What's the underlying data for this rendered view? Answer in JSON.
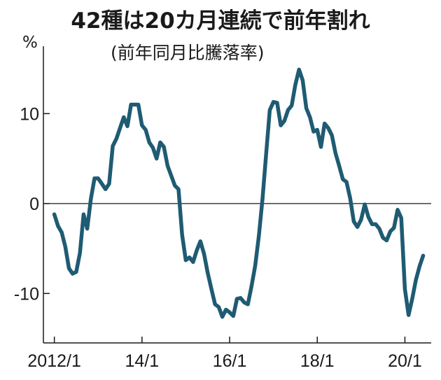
{
  "chart_data": {
    "type": "line",
    "title": "42種は20カ月連続で前年割れ",
    "subtitle": "(前年同月比騰落率)",
    "ylabel": "%",
    "xlabel": "",
    "ylim": [
      -15.5,
      17.5
    ],
    "xlim": [
      2011.75,
      2020.6
    ],
    "y_ticks": [
      {
        "value": 10,
        "label": "10"
      },
      {
        "value": 0,
        "label": "0"
      },
      {
        "value": -10,
        "label": "-10"
      }
    ],
    "x_ticks": [
      {
        "value": 2012.0,
        "label": "2012/1"
      },
      {
        "value": 2014.0,
        "label": "14/1"
      },
      {
        "value": 2016.0,
        "label": "16/1"
      },
      {
        "value": 2018.0,
        "label": "18/1"
      },
      {
        "value": 2020.0,
        "label": "20/1"
      }
    ],
    "zero_line": true,
    "grid": false,
    "series": [
      {
        "color": "#1f5b73",
        "x": [
          2012.0,
          2012.0833,
          2012.1667,
          2012.25,
          2012.3333,
          2012.4167,
          2012.5,
          2012.5833,
          2012.6667,
          2012.75,
          2012.8333,
          2012.9167,
          2013.0,
          2013.0833,
          2013.1667,
          2013.25,
          2013.3333,
          2013.4167,
          2013.5,
          2013.5833,
          2013.6667,
          2013.75,
          2013.8333,
          2013.9167,
          2014.0,
          2014.0833,
          2014.1667,
          2014.25,
          2014.3333,
          2014.4167,
          2014.5,
          2014.5833,
          2014.6667,
          2014.75,
          2014.8333,
          2014.9167,
          2015.0,
          2015.0833,
          2015.1667,
          2015.25,
          2015.3333,
          2015.4167,
          2015.5,
          2015.5833,
          2015.6667,
          2015.75,
          2015.8333,
          2015.9167,
          2016.0,
          2016.0833,
          2016.1667,
          2016.25,
          2016.3333,
          2016.4167,
          2016.5,
          2016.5833,
          2016.6667,
          2016.75,
          2016.8333,
          2016.9167,
          2017.0,
          2017.0833,
          2017.1667,
          2017.25,
          2017.3333,
          2017.4167,
          2017.5,
          2017.5833,
          2017.6667,
          2017.75,
          2017.8333,
          2017.9167,
          2018.0,
          2018.0833,
          2018.1667,
          2018.25,
          2018.3333,
          2018.4167,
          2018.5,
          2018.5833,
          2018.6667,
          2018.75,
          2018.8333,
          2018.9167,
          2019.0,
          2019.0833,
          2019.1667,
          2019.25,
          2019.3333,
          2019.4167,
          2019.5,
          2019.5833,
          2019.6667,
          2019.75,
          2019.8333,
          2019.9167,
          2020.0,
          2020.0833,
          2020.1667,
          2020.25,
          2020.3333,
          2020.4167
        ],
        "values": [
          -1.2,
          -2.5,
          -3.2,
          -4.8,
          -7.2,
          -7.8,
          -7.6,
          -5.5,
          -1.2,
          -2.8,
          0.5,
          2.8,
          2.8,
          2.2,
          1.6,
          2.2,
          6.4,
          7.2,
          8.4,
          9.6,
          8.6,
          11.0,
          11.0,
          11.0,
          8.7,
          8.2,
          6.8,
          6.2,
          5.0,
          6.8,
          6.3,
          4.2,
          3.1,
          2.0,
          1.6,
          -3.5,
          -6.3,
          -6.0,
          -6.5,
          -5.2,
          -4.2,
          -5.6,
          -7.7,
          -9.5,
          -11.2,
          -11.5,
          -12.6,
          -11.8,
          -12.1,
          -12.5,
          -10.6,
          -10.5,
          -11.0,
          -11.2,
          -9.2,
          -6.9,
          -3.6,
          0.5,
          5.5,
          10.4,
          11.3,
          11.2,
          8.7,
          9.2,
          10.4,
          10.9,
          13.2,
          14.9,
          13.7,
          10.6,
          9.6,
          8.0,
          8.2,
          6.3,
          8.9,
          8.4,
          7.6,
          5.6,
          4.2,
          2.7,
          2.4,
          0.6,
          -2.0,
          -2.6,
          -1.8,
          -0.1,
          -1.5,
          -2.3,
          -2.3,
          -2.8,
          -3.8,
          -4.1,
          -3.1,
          -2.7,
          -0.7,
          -1.6,
          -9.5,
          -12.4,
          -10.6,
          -8.5,
          -7.0,
          -5.8
        ]
      }
    ]
  }
}
